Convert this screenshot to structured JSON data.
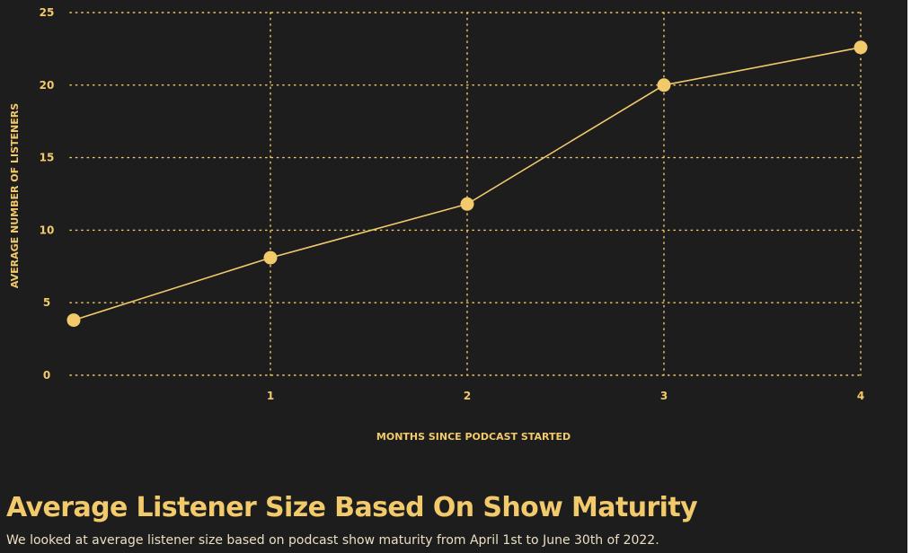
{
  "chart_data": {
    "type": "line",
    "title": "Average Listener Size Based On Show Maturity",
    "subtitle": "We looked at average listener size based on podcast show maturity from April 1st to June 30th of 2022.",
    "xlabel": "MONTHS SINCE PODCAST STARTED",
    "ylabel": "AVERAGE NUMBER OF LISTENERS",
    "x": [
      0,
      1,
      2,
      3,
      4
    ],
    "y": [
      3.8,
      8.1,
      11.8,
      20.0,
      22.6
    ],
    "xticks": [
      "1",
      "2",
      "3",
      "4"
    ],
    "yticks": [
      "0",
      "5",
      "10",
      "15",
      "20",
      "25"
    ],
    "xlim": [
      0,
      4
    ],
    "ylim": [
      0,
      25
    ],
    "grid": true,
    "series_color": "#f2c96b",
    "background_color": "#1d1d1d"
  }
}
